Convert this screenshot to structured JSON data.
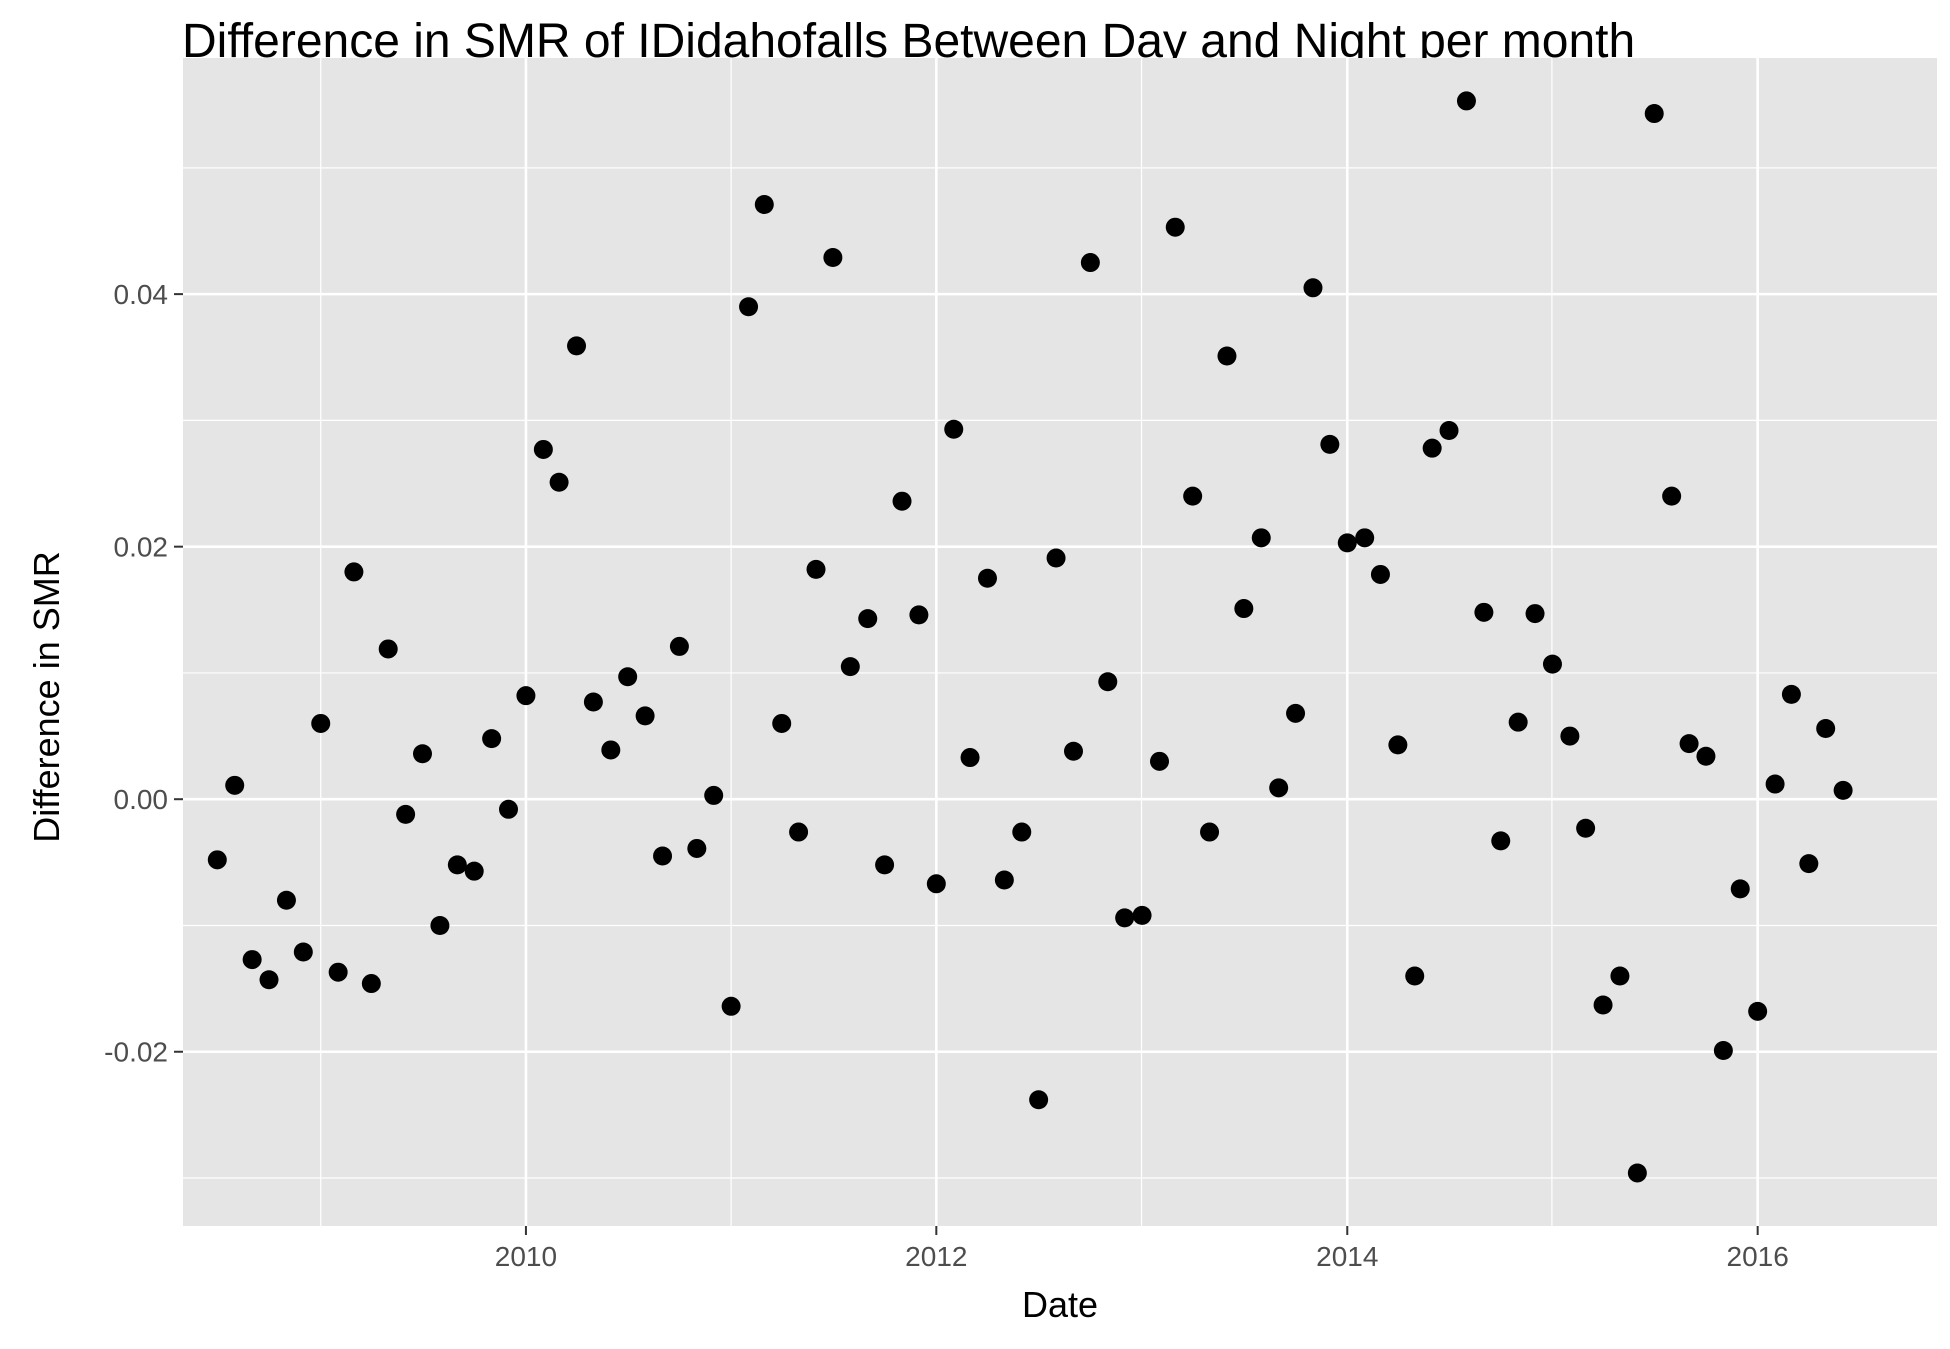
{
  "chart_data": {
    "type": "scatter",
    "title": "Difference in SMR of IDidahofalls Between Day and Night per month",
    "xlabel": "Date",
    "ylabel": "Difference in SMR",
    "x_type": "date",
    "xlim": [
      "2008-05-01",
      "2016-11-15"
    ],
    "ylim": [
      -0.0338,
      0.0587
    ],
    "x_ticks": [
      {
        "value": "2010-01-01",
        "label": "2010"
      },
      {
        "value": "2012-01-01",
        "label": "2012"
      },
      {
        "value": "2014-01-01",
        "label": "2014"
      },
      {
        "value": "2016-01-01",
        "label": "2016"
      }
    ],
    "y_ticks": [
      {
        "value": -0.02,
        "label": "-0.02"
      },
      {
        "value": 0.0,
        "label": "0.00"
      },
      {
        "value": 0.02,
        "label": "0.02"
      },
      {
        "value": 0.04,
        "label": "0.04"
      }
    ],
    "grid": true,
    "legend": "none",
    "colors": {
      "panel": "#e5e5e5",
      "grid": "#ffffff",
      "point": "#000000",
      "axis_text": "#4d4d4d",
      "tick": "#333333"
    },
    "series": [
      {
        "points": [
          {
            "x": "2008-07-01",
            "y": -0.0048
          },
          {
            "x": "2008-08-01",
            "y": 0.0011
          },
          {
            "x": "2008-09-01",
            "y": -0.0127
          },
          {
            "x": "2008-10-01",
            "y": -0.0143
          },
          {
            "x": "2008-11-01",
            "y": -0.008
          },
          {
            "x": "2008-12-01",
            "y": -0.0121
          },
          {
            "x": "2009-01-01",
            "y": 0.006
          },
          {
            "x": "2009-02-01",
            "y": -0.0137
          },
          {
            "x": "2009-03-01",
            "y": 0.018
          },
          {
            "x": "2009-04-01",
            "y": -0.0146
          },
          {
            "x": "2009-05-01",
            "y": 0.0119
          },
          {
            "x": "2009-06-01",
            "y": -0.0012
          },
          {
            "x": "2009-07-01",
            "y": 0.0036
          },
          {
            "x": "2009-08-01",
            "y": -0.01
          },
          {
            "x": "2009-09-01",
            "y": -0.0052
          },
          {
            "x": "2009-10-01",
            "y": -0.0057
          },
          {
            "x": "2009-11-01",
            "y": 0.0048
          },
          {
            "x": "2009-12-01",
            "y": -0.0008
          },
          {
            "x": "2010-01-01",
            "y": 0.0082
          },
          {
            "x": "2010-02-01",
            "y": 0.0277
          },
          {
            "x": "2010-03-01",
            "y": 0.0251
          },
          {
            "x": "2010-04-01",
            "y": 0.0359
          },
          {
            "x": "2010-05-01",
            "y": 0.0077
          },
          {
            "x": "2010-06-01",
            "y": 0.0039
          },
          {
            "x": "2010-07-01",
            "y": 0.0097
          },
          {
            "x": "2010-08-01",
            "y": 0.0066
          },
          {
            "x": "2010-09-01",
            "y": -0.0045
          },
          {
            "x": "2010-10-01",
            "y": 0.0121
          },
          {
            "x": "2010-11-01",
            "y": -0.0039
          },
          {
            "x": "2010-12-01",
            "y": 0.0003
          },
          {
            "x": "2011-01-01",
            "y": -0.0164
          },
          {
            "x": "2011-02-01",
            "y": 0.039
          },
          {
            "x": "2011-03-01",
            "y": 0.0471
          },
          {
            "x": "2011-04-01",
            "y": 0.006
          },
          {
            "x": "2011-05-01",
            "y": -0.0026
          },
          {
            "x": "2011-06-01",
            "y": 0.0182
          },
          {
            "x": "2011-07-01",
            "y": 0.0429
          },
          {
            "x": "2011-08-01",
            "y": 0.0105
          },
          {
            "x": "2011-09-01",
            "y": 0.0143
          },
          {
            "x": "2011-10-01",
            "y": -0.0052
          },
          {
            "x": "2011-11-01",
            "y": 0.0236
          },
          {
            "x": "2011-12-01",
            "y": 0.0146
          },
          {
            "x": "2012-01-01",
            "y": -0.0067
          },
          {
            "x": "2012-02-01",
            "y": 0.0293
          },
          {
            "x": "2012-03-01",
            "y": 0.0033
          },
          {
            "x": "2012-04-01",
            "y": 0.0175
          },
          {
            "x": "2012-05-01",
            "y": -0.0064
          },
          {
            "x": "2012-06-01",
            "y": -0.0026
          },
          {
            "x": "2012-07-01",
            "y": -0.0238
          },
          {
            "x": "2012-08-01",
            "y": 0.0191
          },
          {
            "x": "2012-09-01",
            "y": 0.0038
          },
          {
            "x": "2012-10-01",
            "y": 0.0425
          },
          {
            "x": "2012-11-01",
            "y": 0.0093
          },
          {
            "x": "2012-12-01",
            "y": -0.0094
          },
          {
            "x": "2013-01-01",
            "y": -0.0092
          },
          {
            "x": "2013-02-01",
            "y": 0.003
          },
          {
            "x": "2013-03-01",
            "y": 0.0453
          },
          {
            "x": "2013-04-01",
            "y": 0.024
          },
          {
            "x": "2013-05-01",
            "y": -0.0026
          },
          {
            "x": "2013-06-01",
            "y": 0.0351
          },
          {
            "x": "2013-07-01",
            "y": 0.0151
          },
          {
            "x": "2013-08-01",
            "y": 0.0207
          },
          {
            "x": "2013-09-01",
            "y": 0.0009
          },
          {
            "x": "2013-10-01",
            "y": 0.0068
          },
          {
            "x": "2013-11-01",
            "y": 0.0405
          },
          {
            "x": "2013-12-01",
            "y": 0.0281
          },
          {
            "x": "2014-01-01",
            "y": 0.0203
          },
          {
            "x": "2014-02-01",
            "y": 0.0207
          },
          {
            "x": "2014-03-01",
            "y": 0.0178
          },
          {
            "x": "2014-04-01",
            "y": 0.0043
          },
          {
            "x": "2014-05-01",
            "y": -0.014
          },
          {
            "x": "2014-06-01",
            "y": 0.0278
          },
          {
            "x": "2014-07-01",
            "y": 0.0292
          },
          {
            "x": "2014-08-01",
            "y": 0.0553
          },
          {
            "x": "2014-09-01",
            "y": 0.0148
          },
          {
            "x": "2014-10-01",
            "y": -0.0033
          },
          {
            "x": "2014-11-01",
            "y": 0.0061
          },
          {
            "x": "2014-12-01",
            "y": 0.0147
          },
          {
            "x": "2015-01-01",
            "y": 0.0107
          },
          {
            "x": "2015-02-01",
            "y": 0.005
          },
          {
            "x": "2015-03-01",
            "y": -0.0023
          },
          {
            "x": "2015-04-01",
            "y": -0.0163
          },
          {
            "x": "2015-05-01",
            "y": -0.014
          },
          {
            "x": "2015-06-01",
            "y": -0.0296
          },
          {
            "x": "2015-07-01",
            "y": 0.0543
          },
          {
            "x": "2015-08-01",
            "y": 0.024
          },
          {
            "x": "2015-09-01",
            "y": 0.0044
          },
          {
            "x": "2015-10-01",
            "y": 0.0034
          },
          {
            "x": "2015-11-01",
            "y": -0.0199
          },
          {
            "x": "2015-12-01",
            "y": -0.0071
          },
          {
            "x": "2016-01-01",
            "y": -0.0168
          },
          {
            "x": "2016-02-01",
            "y": 0.0012
          },
          {
            "x": "2016-03-01",
            "y": 0.0083
          },
          {
            "x": "2016-04-01",
            "y": -0.0051
          },
          {
            "x": "2016-05-01",
            "y": 0.0056
          },
          {
            "x": "2016-06-01",
            "y": 0.0007
          }
        ]
      }
    ]
  }
}
